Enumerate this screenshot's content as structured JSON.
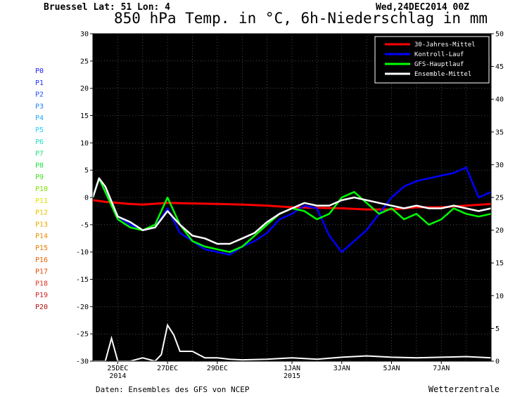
{
  "header": {
    "location": "Bruessel   Lat: 51 Lon: 4",
    "datetime": "Wed,24DEC2014 00Z",
    "title": "850 hPa Temp. in °C, 6h-Niederschlag in mm"
  },
  "footer": {
    "source": "Daten: Ensembles des GFS von NCEP",
    "brand": "Wetterzentrale"
  },
  "members": [
    {
      "label": "P0",
      "color": "#2020ff"
    },
    {
      "label": "P1",
      "color": "#2030ff"
    },
    {
      "label": "P2",
      "color": "#2050ff"
    },
    {
      "label": "P3",
      "color": "#2080ff"
    },
    {
      "label": "P4",
      "color": "#20a8ff"
    },
    {
      "label": "P5",
      "color": "#20d0ff"
    },
    {
      "label": "P6",
      "color": "#20e0c0"
    },
    {
      "label": "P7",
      "color": "#20e080"
    },
    {
      "label": "P8",
      "color": "#20e040"
    },
    {
      "label": "P9",
      "color": "#40e020"
    },
    {
      "label": "P10",
      "color": "#80e000"
    },
    {
      "label": "P11",
      "color": "#e0e000"
    },
    {
      "label": "P12",
      "color": "#e8c000"
    },
    {
      "label": "P13",
      "color": "#e8a800"
    },
    {
      "label": "P14",
      "color": "#e89000"
    },
    {
      "label": "P15",
      "color": "#e87800"
    },
    {
      "label": "P16",
      "color": "#e86000"
    },
    {
      "label": "P17",
      "color": "#e84800"
    },
    {
      "label": "P18",
      "color": "#e03020"
    },
    {
      "label": "P19",
      "color": "#d02020"
    },
    {
      "label": "P20",
      "color": "#b01010"
    }
  ],
  "chart_data": {
    "type": "line",
    "background": "#000000",
    "ylim_left": [
      -30,
      30
    ],
    "ylim_right": [
      0,
      50
    ],
    "yticks_left": [
      "30",
      "25",
      "20",
      "15",
      "10",
      "5",
      "0",
      "-5",
      "-10",
      "-15",
      "-20",
      "-25",
      "-30"
    ],
    "yticks_right": [
      "50",
      "45",
      "40",
      "35",
      "30",
      "25",
      "20",
      "15",
      "10",
      "5",
      "0"
    ],
    "x_range_days": [
      0,
      16
    ],
    "xticks": [
      {
        "day": 1,
        "label": "25DEC",
        "sub": "2014"
      },
      {
        "day": 3,
        "label": "27DEC",
        "sub": ""
      },
      {
        "day": 5,
        "label": "29DEC",
        "sub": ""
      },
      {
        "day": 8,
        "label": "1JAN",
        "sub": "2015"
      },
      {
        "day": 10,
        "label": "3JAN",
        "sub": ""
      },
      {
        "day": 12,
        "label": "5JAN",
        "sub": ""
      },
      {
        "day": 14,
        "label": "7JAN",
        "sub": ""
      }
    ],
    "legend": {
      "position": "top-right",
      "entries": [
        {
          "name": "30-Jahres-Mittel",
          "color": "#ff0000"
        },
        {
          "name": "Kontroll-Lauf",
          "color": "#0000ff"
        },
        {
          "name": "GFS-Hauptlauf",
          "color": "#00ff00"
        },
        {
          "name": "Ensemble-Mittel",
          "color": "#ffffff"
        }
      ]
    },
    "series": [
      {
        "name": "30-Jahres-Mittel",
        "color": "#ff0000",
        "width": 3,
        "x": [
          0,
          0.5,
          1,
          1.5,
          2,
          3,
          4,
          5,
          6,
          7,
          8,
          9,
          10,
          11,
          12,
          13,
          14,
          15,
          16
        ],
        "y": [
          -0.5,
          -0.8,
          -1.0,
          -1.2,
          -1.3,
          -1.0,
          -1.1,
          -1.2,
          -1.3,
          -1.5,
          -1.8,
          -1.9,
          -2.0,
          -2.2,
          -2.2,
          -1.8,
          -1.8,
          -1.5,
          -1.2
        ]
      },
      {
        "name": "Kontroll-Lauf",
        "color": "#0000ff",
        "width": 2.5,
        "x": [
          0,
          0.25,
          0.5,
          1,
          1.5,
          2,
          2.5,
          3,
          3.5,
          4,
          4.5,
          5,
          5.5,
          6,
          6.5,
          7,
          7.5,
          8,
          8.5,
          9,
          9.5,
          10,
          10.5,
          11,
          11.5,
          12,
          12.5,
          13,
          13.5,
          14,
          14.5,
          15,
          15.5,
          16
        ],
        "y": [
          0,
          3.5,
          1,
          -3.5,
          -5,
          -6,
          -5.5,
          -2,
          -6.5,
          -8,
          -9.5,
          -10,
          -10.5,
          -9,
          -8,
          -6.5,
          -4,
          -3,
          -1.5,
          -2,
          -7,
          -10,
          -8,
          -6,
          -3,
          0,
          2,
          3,
          3.5,
          4,
          4.5,
          5.5,
          0,
          1
        ]
      },
      {
        "name": "GFS-Hauptlauf",
        "color": "#00ff00",
        "width": 2.5,
        "x": [
          0,
          0.25,
          0.5,
          1,
          1.5,
          2,
          2.5,
          3,
          3.5,
          4,
          4.5,
          5,
          5.5,
          6,
          6.5,
          7,
          7.5,
          8,
          8.5,
          9,
          9.5,
          10,
          10.5,
          11,
          11.5,
          12,
          12.5,
          13,
          13.5,
          14,
          14.5,
          15,
          15.5,
          16
        ],
        "y": [
          0,
          3.5,
          1,
          -4,
          -5.5,
          -6,
          -5,
          0,
          -5,
          -8,
          -9,
          -9.5,
          -10,
          -9,
          -7,
          -5,
          -3,
          -2,
          -2.5,
          -4,
          -3,
          0,
          1,
          -1,
          -3,
          -2,
          -4,
          -3,
          -5,
          -4,
          -2,
          -3,
          -3.5,
          -3
        ]
      },
      {
        "name": "Ensemble-Mittel",
        "color": "#ffffff",
        "width": 2.5,
        "x": [
          0,
          0.25,
          0.5,
          1,
          1.5,
          2,
          2.5,
          3,
          3.5,
          4,
          4.5,
          5,
          5.5,
          6,
          6.5,
          7,
          7.5,
          8,
          8.5,
          9,
          9.5,
          10,
          10.5,
          11,
          11.5,
          12,
          12.5,
          13,
          13.5,
          14,
          14.5,
          15,
          15.5,
          16
        ],
        "y": [
          0,
          3.5,
          2,
          -3.5,
          -4.5,
          -6,
          -5.5,
          -2.5,
          -5,
          -7,
          -7.5,
          -8.5,
          -8.5,
          -7.5,
          -6.5,
          -4.5,
          -3,
          -2,
          -1,
          -1.5,
          -1.5,
          -0.5,
          0,
          -0.5,
          -1,
          -1.5,
          -2,
          -1.5,
          -2,
          -2,
          -1.5,
          -2,
          -2.5,
          -2
        ]
      }
    ],
    "precip_mean": {
      "name": "Ensemble-Mittel Niederschlag",
      "color": "#ffffff",
      "x": [
        0,
        0.5,
        0.75,
        1,
        1.25,
        1.5,
        2,
        2.5,
        2.75,
        3,
        3.25,
        3.5,
        4,
        4.5,
        5,
        5.5,
        6,
        7,
        8,
        9,
        10,
        11,
        12,
        13,
        14,
        15,
        16
      ],
      "y": [
        0,
        0,
        3.5,
        0,
        0,
        0,
        0.5,
        0,
        1,
        5.5,
        4,
        1.5,
        1.5,
        0.5,
        0.5,
        0.3,
        0.2,
        0.3,
        0.5,
        0.3,
        0.6,
        0.8,
        0.6,
        0.5,
        0.6,
        0.7,
        0.5
      ]
    }
  }
}
